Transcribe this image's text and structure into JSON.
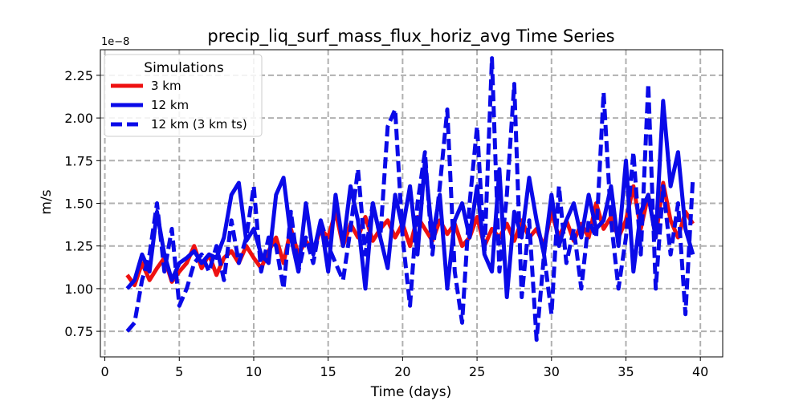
{
  "chart_data": {
    "type": "line",
    "title": "precip_liq_surf_mass_flux_horiz_avg Time Series",
    "xlabel": "Time (days)",
    "ylabel": "m/s",
    "y_offset_text": "1e−8",
    "xlim": [
      -0.3,
      41.5
    ],
    "ylim": [
      0.6,
      2.4
    ],
    "xticks": [
      0,
      5,
      10,
      15,
      20,
      25,
      30,
      35,
      40
    ],
    "xtick_labels": [
      "0",
      "5",
      "10",
      "15",
      "20",
      "25",
      "30",
      "35",
      "40"
    ],
    "yticks": [
      0.75,
      1.0,
      1.25,
      1.5,
      1.75,
      2.0,
      2.25
    ],
    "ytick_labels": [
      "0.75",
      "1.00",
      "1.25",
      "1.50",
      "1.75",
      "2.00",
      "2.25"
    ],
    "grid": true,
    "legend": {
      "title": "Simulations",
      "location": "upper-left",
      "entries": [
        "3 km",
        "12 km",
        "12 km (3 km ts)"
      ]
    },
    "series": [
      {
        "name": "3 km",
        "color": "#ee1111",
        "style": "solid",
        "x": [
          1.5,
          2.0,
          2.5,
          3.0,
          3.5,
          4.0,
          4.5,
          5.0,
          5.5,
          6.0,
          6.5,
          7.0,
          7.5,
          8.0,
          8.5,
          9.0,
          9.5,
          10.0,
          10.5,
          11.0,
          11.5,
          12.0,
          12.5,
          13.0,
          13.5,
          14.0,
          14.5,
          15.0,
          15.5,
          16.0,
          16.5,
          17.0,
          17.5,
          18.0,
          18.5,
          19.0,
          19.5,
          20.0,
          20.5,
          21.0,
          21.5,
          22.0,
          22.5,
          23.0,
          23.5,
          24.0,
          24.5,
          25.0,
          25.5,
          26.0,
          26.5,
          27.0,
          27.5,
          28.0,
          28.5,
          29.0,
          29.5,
          30.0,
          30.5,
          31.0,
          31.5,
          32.0,
          32.5,
          33.0,
          33.5,
          34.0,
          34.5,
          35.0,
          35.5,
          36.0,
          36.5,
          37.0,
          37.5,
          38.0,
          38.5,
          39.0,
          39.5
        ],
        "values": [
          1.08,
          1.02,
          1.15,
          1.05,
          1.12,
          1.18,
          1.04,
          1.1,
          1.15,
          1.25,
          1.12,
          1.2,
          1.08,
          1.18,
          1.22,
          1.15,
          1.25,
          1.18,
          1.12,
          1.22,
          1.3,
          1.15,
          1.35,
          1.2,
          1.28,
          1.22,
          1.35,
          1.3,
          1.45,
          1.25,
          1.38,
          1.3,
          1.42,
          1.28,
          1.35,
          1.4,
          1.3,
          1.38,
          1.25,
          1.42,
          1.35,
          1.28,
          1.4,
          1.32,
          1.38,
          1.25,
          1.3,
          1.42,
          1.25,
          1.35,
          1.3,
          1.38,
          1.28,
          1.4,
          1.3,
          1.35,
          1.25,
          1.45,
          1.3,
          1.4,
          1.28,
          1.38,
          1.3,
          1.5,
          1.35,
          1.42,
          1.3,
          1.4,
          1.6,
          1.35,
          1.55,
          1.3,
          1.62,
          1.4,
          1.3,
          1.45,
          1.38
        ]
      },
      {
        "name": "12 km",
        "color": "#0a0ae8",
        "style": "solid",
        "x": [
          1.5,
          2.0,
          2.5,
          3.0,
          3.5,
          4.0,
          4.5,
          5.0,
          5.5,
          6.0,
          6.5,
          7.0,
          7.5,
          8.0,
          8.5,
          9.0,
          9.5,
          10.0,
          10.5,
          11.0,
          11.5,
          12.0,
          12.5,
          13.0,
          13.5,
          14.0,
          14.5,
          15.0,
          15.5,
          16.0,
          16.5,
          17.0,
          17.5,
          18.0,
          18.5,
          19.0,
          19.5,
          20.0,
          20.5,
          21.0,
          21.5,
          22.0,
          22.5,
          23.0,
          23.5,
          24.0,
          24.5,
          25.0,
          25.5,
          26.0,
          26.5,
          27.0,
          27.5,
          28.0,
          28.5,
          29.0,
          29.5,
          30.0,
          30.5,
          31.0,
          31.5,
          32.0,
          32.5,
          33.0,
          33.5,
          34.0,
          34.5,
          35.0,
          35.5,
          36.0,
          36.5,
          37.0,
          37.5,
          38.0,
          38.5,
          39.0,
          39.5
        ],
        "values": [
          1.0,
          1.05,
          1.2,
          1.1,
          1.45,
          1.2,
          1.05,
          1.15,
          1.18,
          1.22,
          1.15,
          1.2,
          1.18,
          1.3,
          1.55,
          1.62,
          1.28,
          1.35,
          1.2,
          1.15,
          1.55,
          1.65,
          1.3,
          1.1,
          1.5,
          1.2,
          1.4,
          1.1,
          1.55,
          1.25,
          1.6,
          1.4,
          1.0,
          1.5,
          1.3,
          1.12,
          1.55,
          1.35,
          1.6,
          1.2,
          1.75,
          1.3,
          1.55,
          1.0,
          1.4,
          1.5,
          1.3,
          1.6,
          1.2,
          1.1,
          1.7,
          0.95,
          1.45,
          1.3,
          1.65,
          1.4,
          1.2,
          1.55,
          1.25,
          1.4,
          1.5,
          1.3,
          1.55,
          1.35,
          1.4,
          1.6,
          1.25,
          1.75,
          1.1,
          1.45,
          1.55,
          1.3,
          2.1,
          1.6,
          1.8,
          1.35,
          1.2
        ]
      },
      {
        "name": "12 km (3 km ts)",
        "color": "#0a0ae8",
        "style": "dashed",
        "x": [
          1.5,
          2.0,
          2.5,
          3.0,
          3.5,
          4.0,
          4.5,
          5.0,
          5.5,
          6.0,
          6.5,
          7.0,
          7.5,
          8.0,
          8.5,
          9.0,
          9.5,
          10.0,
          10.5,
          11.0,
          11.5,
          12.0,
          12.5,
          13.0,
          13.5,
          14.0,
          14.5,
          15.0,
          15.5,
          16.0,
          16.5,
          17.0,
          17.5,
          18.0,
          18.5,
          19.0,
          19.5,
          20.0,
          20.5,
          21.0,
          21.5,
          22.0,
          22.5,
          23.0,
          23.5,
          24.0,
          24.5,
          25.0,
          25.5,
          26.0,
          26.5,
          27.0,
          27.5,
          28.0,
          28.5,
          29.0,
          29.5,
          30.0,
          30.5,
          31.0,
          31.5,
          32.0,
          32.5,
          33.0,
          33.5,
          34.0,
          34.5,
          35.0,
          35.5,
          36.0,
          36.5,
          37.0,
          37.5,
          38.0,
          38.5,
          39.0,
          39.5
        ],
        "values": [
          0.75,
          0.8,
          1.05,
          1.2,
          1.5,
          1.1,
          1.35,
          0.9,
          1.0,
          1.15,
          1.2,
          1.1,
          1.25,
          1.05,
          1.4,
          1.15,
          1.3,
          1.6,
          1.1,
          1.3,
          1.25,
          1.0,
          1.45,
          1.1,
          1.3,
          1.15,
          1.4,
          1.25,
          1.15,
          1.05,
          1.35,
          1.7,
          1.2,
          1.5,
          1.3,
          1.95,
          2.05,
          1.3,
          0.9,
          1.5,
          1.8,
          1.2,
          1.6,
          2.05,
          1.1,
          0.8,
          1.5,
          1.95,
          1.2,
          2.35,
          1.1,
          1.55,
          2.2,
          0.95,
          1.4,
          0.7,
          1.2,
          0.85,
          1.6,
          1.15,
          1.35,
          1.0,
          1.4,
          1.3,
          2.15,
          1.4,
          1.0,
          1.3,
          1.8,
          1.2,
          2.2,
          1.0,
          1.6,
          1.2,
          1.5,
          0.85,
          1.65
        ]
      }
    ]
  }
}
